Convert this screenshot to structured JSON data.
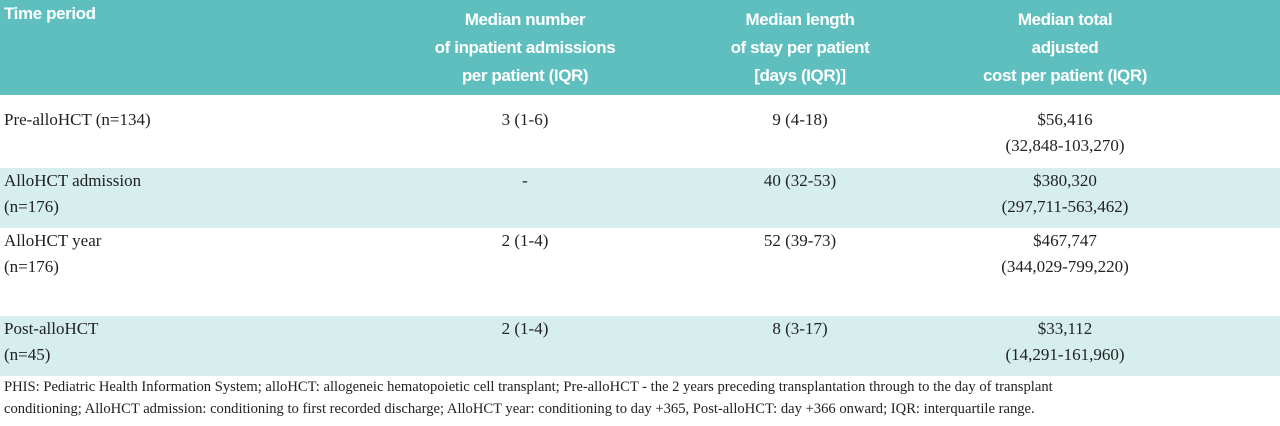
{
  "table": {
    "header": [
      [
        "Time period"
      ],
      [
        "Median number",
        "of inpatient admissions",
        "per patient (IQR)"
      ],
      [
        "Median length",
        "of stay per patient",
        "[days (IQR)]"
      ],
      [
        "Median total",
        "adjusted",
        "cost per patient (IQR)"
      ]
    ],
    "rows": [
      [
        [
          "Pre-alloHCT (n=134)"
        ],
        [
          "3 (1-6)"
        ],
        [
          "9 (4-18)"
        ],
        [
          "$56,416",
          "(32,848-103,270)"
        ]
      ],
      [
        [
          "AlloHCT admission",
          "(n=176)"
        ],
        [
          "-"
        ],
        [
          "40 (32-53)"
        ],
        [
          "$380,320",
          "(297,711-563,462)"
        ]
      ],
      [
        [
          "AlloHCT year",
          "(n=176)"
        ],
        [
          "2 (1-4)"
        ],
        [
          "52 (39-73)"
        ],
        [
          "$467,747",
          "(344,029-799,220)"
        ]
      ],
      [
        [
          "Post-alloHCT",
          "(n=45)"
        ],
        [
          "2 (1-4)"
        ],
        [
          "8 (3-17)"
        ],
        [
          "$33,112",
          "(14,291-161,960)"
        ]
      ]
    ],
    "footnote": [
      "PHIS: Pediatric Health Information System; alloHCT: allogeneic hematopoietic cell transplant; Pre-alloHCT - the 2 years preceding transplantation through to the day of transplant",
      "conditioning; AlloHCT admission: conditioning to first recorded discharge; AlloHCT year: conditioning to day +365, Post-alloHCT: day +366 onward; IQR: interquartile range."
    ]
  }
}
